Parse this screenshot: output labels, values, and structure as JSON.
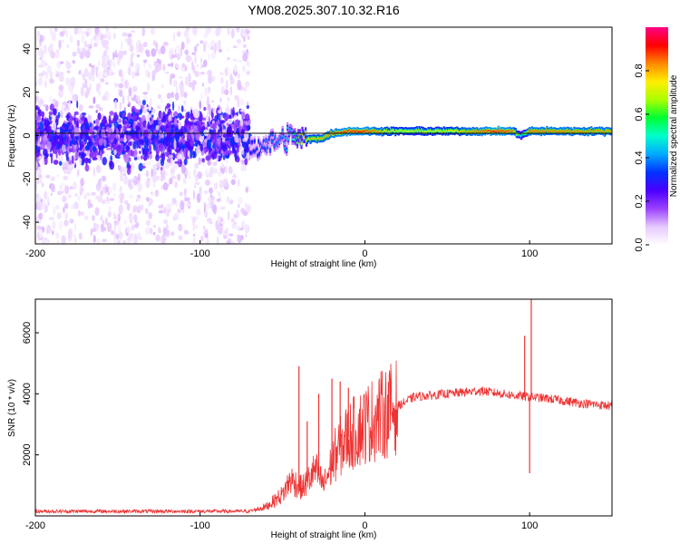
{
  "title": "YM08.2025.307.10.32.R16",
  "chart_data": [
    {
      "type": "heatmap",
      "name": "spectrogram",
      "xlabel": "Height of straight line (km)",
      "ylabel": "Frequency (Hz)",
      "xlim": [
        -200,
        150
      ],
      "ylim": [
        -50,
        50
      ],
      "xticks": [
        -200,
        -100,
        0,
        100
      ],
      "yticks": [
        -40,
        -20,
        0,
        20,
        40
      ],
      "colorbar": {
        "label": "Normalized spectral amplitude",
        "range": [
          0,
          1
        ],
        "ticks": [
          0.0,
          0.2,
          0.4,
          0.6,
          0.8
        ],
        "colors": [
          "#ffffff",
          "#e6c8ff",
          "#9a40ff",
          "#4a00ff",
          "#0033ff",
          "#00aaff",
          "#00ffcc",
          "#00ff33",
          "#aaff00",
          "#ffee00",
          "#ff8800",
          "#ff0000",
          "#ff0088"
        ]
      },
      "noise_region": {
        "x_range": [
          -200,
          -70
        ],
        "freq_spread": 50,
        "core_spread": 8
      },
      "ridge": [
        {
          "x": -70,
          "freq": -6,
          "amp": 0.3
        },
        {
          "x": -60,
          "freq": -4,
          "amp": 0.35
        },
        {
          "x": -50,
          "freq": -2,
          "amp": 0.4
        },
        {
          "x": -44,
          "freq": 0,
          "amp": 0.45
        },
        {
          "x": -38,
          "freq": -2,
          "amp": 0.75
        },
        {
          "x": -25,
          "freq": -1,
          "amp": 0.8
        },
        {
          "x": -20,
          "freq": 1,
          "amp": 0.85
        },
        {
          "x": -10,
          "freq": 2,
          "amp": 0.9
        },
        {
          "x": 0,
          "freq": 2,
          "amp": 0.9
        },
        {
          "x": 20,
          "freq": 2,
          "amp": 0.7
        },
        {
          "x": 50,
          "freq": 2,
          "amp": 0.72
        },
        {
          "x": 80,
          "freq": 2,
          "amp": 0.92
        },
        {
          "x": 90,
          "freq": 2,
          "amp": 0.85
        },
        {
          "x": 95,
          "freq": 0,
          "amp": 0.5
        },
        {
          "x": 100,
          "freq": 2,
          "amp": 0.85
        },
        {
          "x": 150,
          "freq": 2,
          "amp": 0.82
        }
      ]
    },
    {
      "type": "line",
      "name": "snr",
      "xlabel": "Height of straight line (km)",
      "ylabel": "SNR (10 * v/v)",
      "xlim": [
        -200,
        150
      ],
      "ylim": [
        0,
        7100
      ],
      "xticks": [
        -200,
        -100,
        0,
        100
      ],
      "yticks": [
        2000,
        4000,
        6000
      ],
      "color": "#ee3333",
      "envelope": [
        {
          "x": -200,
          "y": 150
        },
        {
          "x": -70,
          "y": 150
        },
        {
          "x": -60,
          "y": 300
        },
        {
          "x": -50,
          "y": 700
        },
        {
          "x": -45,
          "y": 1200
        },
        {
          "x": -38,
          "y": 900
        },
        {
          "x": -30,
          "y": 1500
        },
        {
          "x": -25,
          "y": 1000
        },
        {
          "x": -18,
          "y": 2000
        },
        {
          "x": -12,
          "y": 2500
        },
        {
          "x": 0,
          "y": 3000
        },
        {
          "x": 10,
          "y": 3300
        },
        {
          "x": 20,
          "y": 3600
        },
        {
          "x": 30,
          "y": 3900
        },
        {
          "x": 50,
          "y": 4000
        },
        {
          "x": 70,
          "y": 4100
        },
        {
          "x": 90,
          "y": 3950
        },
        {
          "x": 110,
          "y": 3850
        },
        {
          "x": 130,
          "y": 3700
        },
        {
          "x": 150,
          "y": 3600
        }
      ],
      "spikes": [
        {
          "x": -40,
          "y": 4900
        },
        {
          "x": -35,
          "y": 3100
        },
        {
          "x": -28,
          "y": 4000
        },
        {
          "x": -15,
          "y": 4400
        },
        {
          "x": -10,
          "y": 4200
        },
        {
          "x": -20,
          "y": 4500
        },
        {
          "x": 97,
          "y": 5900
        },
        {
          "x": 101,
          "y": 7100
        },
        {
          "x": 100,
          "y": 1400
        }
      ]
    }
  ]
}
